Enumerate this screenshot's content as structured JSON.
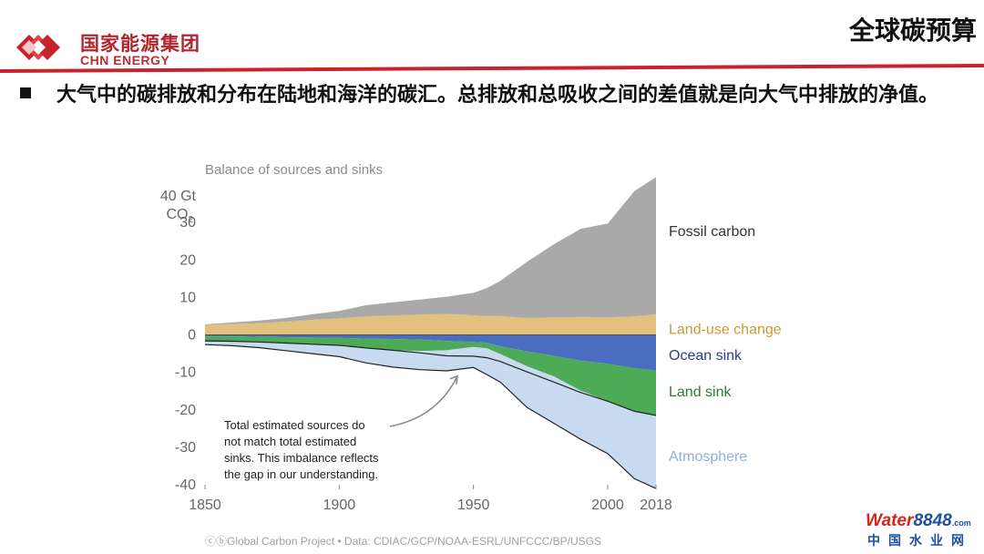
{
  "header": {
    "company_cn": "国家能源集团",
    "company_en": "CHN ENERGY",
    "slide_title": "全球碳预算",
    "bar_color": "#c8232b"
  },
  "body": {
    "bullet_text": "大气中的碳排放和分布在陆地和海洋的碳汇。总排放和总吸收之间的差值就是向大气中排放的净值。"
  },
  "chart_data": {
    "type": "area",
    "title": "Balance of sources and sinks",
    "ylabel_line1": "40 Gt",
    "ylabel_line2": "CO",
    "ylabel_sub": "2",
    "xlim": [
      1850,
      2018
    ],
    "ylim": [
      -40,
      40
    ],
    "x_ticks": [
      1850,
      1900,
      1950,
      2000,
      2018
    ],
    "y_ticks": [
      {
        "value": 30,
        "label": "30"
      },
      {
        "value": 20,
        "label": "20"
      },
      {
        "value": 10,
        "label": "10"
      },
      {
        "value": 0,
        "label": "0"
      },
      {
        "value": -10,
        "label": "-10"
      },
      {
        "value": -20,
        "label": "-20"
      },
      {
        "value": -30,
        "label": "-30"
      },
      {
        "value": -40,
        "label": "-40"
      }
    ],
    "x": [
      1850,
      1860,
      1870,
      1880,
      1890,
      1900,
      1910,
      1920,
      1930,
      1940,
      1950,
      1955,
      1960,
      1970,
      1980,
      1990,
      2000,
      2010,
      2018
    ],
    "series": [
      {
        "name": "Fossil carbon",
        "color": "#a9a9a9",
        "label_color": "#333333",
        "values": [
          0.2,
          0.4,
          0.7,
          1.0,
          1.5,
          2.0,
          3.0,
          3.5,
          4.0,
          4.6,
          6.0,
          7.5,
          9.4,
          15.0,
          19.5,
          23.5,
          25.0,
          33.5,
          36.6
        ]
      },
      {
        "name": "Land-use change",
        "color": "#e2c07e",
        "label_color": "#c99a3c",
        "values": [
          2.6,
          2.9,
          3.1,
          3.5,
          4.0,
          4.4,
          4.9,
          5.2,
          5.4,
          5.6,
          5.2,
          5.0,
          5.0,
          4.5,
          4.7,
          4.8,
          4.7,
          4.9,
          5.5
        ]
      },
      {
        "name": "Ocean sink",
        "color": "#4a6dc2",
        "label_color": "#2c3f8c",
        "values": [
          -0.4,
          -0.4,
          -0.5,
          -0.6,
          -0.7,
          -0.8,
          -1.0,
          -1.1,
          -1.3,
          -1.6,
          -1.9,
          -2.1,
          -3.1,
          -4.4,
          -5.6,
          -6.9,
          -7.7,
          -8.9,
          -9.5
        ]
      },
      {
        "name": "Land sink",
        "color": "#4daa57",
        "label_color": "#2c7a37",
        "values": [
          -1.2,
          -1.3,
          -1.4,
          -1.6,
          -1.8,
          -2.0,
          -2.5,
          -3.0,
          -3.5,
          -4.0,
          -3.8,
          -4.0,
          -4.0,
          -5.5,
          -7.0,
          -8.5,
          -10.0,
          -11.5,
          -12.0
        ]
      },
      {
        "name": "Atmosphere",
        "color": "#c7daf0",
        "label_color": "#8eb1da",
        "values": [
          -1.0,
          -1.2,
          -1.5,
          -2.0,
          -2.5,
          -3.0,
          -4.0,
          -4.5,
          -5.0,
          -5.5,
          -5.5,
          -7.0,
          -7.5,
          -11.0,
          -12.5,
          -13.0,
          -14.0,
          -18.0,
          -19.5
        ]
      }
    ],
    "imbalance_band": {
      "color": "#d9d9d9",
      "values": [
        0,
        0,
        0,
        0,
        0,
        0,
        0,
        0,
        0.5,
        1.5,
        2.5,
        2.5,
        2.0,
        1.5,
        1.5,
        0.5,
        0,
        0,
        0
      ]
    },
    "annotation": {
      "lines": [
        "Total estimated sources do",
        "not match total estimated",
        "sinks. This imbalance reflects",
        "the gap in our understanding."
      ],
      "arrow_target": [
        1944,
        -11
      ]
    },
    "source": "ⓒⓑGlobal Carbon Project  •  Data: CDIAC/GCP/NOAA-ESRL/UNFCCC/BP/USGS",
    "grid": false,
    "legend": "right, inline labels"
  },
  "watermark": {
    "w": "W",
    "ater": "ater",
    "number": "8848",
    "dotcom": ".com",
    "cn": "中国水业网"
  }
}
